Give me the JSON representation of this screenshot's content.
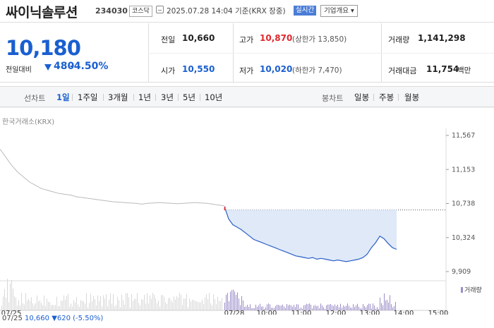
{
  "header": {
    "name": "싸이닉솔루션",
    "code": "234030",
    "market": "코스닥",
    "time": "2025.07.28 14:04 기준(KRX 장중)",
    "live": "실시간",
    "overview": "기업개요 ▾"
  },
  "quote": {
    "price": "10,180",
    "change_label": "전일대비",
    "change": "480",
    "change_pct": "-4.50%",
    "prev_label": "전일",
    "prev": "10,660",
    "high_label": "고가",
    "high": "10,870",
    "upper_limit": "(상한가 13,850)",
    "volume_label": "거래량",
    "volume": "1,141,298",
    "open_label": "시가",
    "open": "10,550",
    "low_label": "저가",
    "low": "10,020",
    "lower_limit": "(하한가 7,470)",
    "amount_label": "거래대금",
    "amount": "11,754",
    "amount_unit": "백만"
  },
  "periods": {
    "line_label": "선차트",
    "items": [
      "1일",
      "1주일",
      "3개월",
      "1년",
      "3년",
      "5년",
      "10년"
    ],
    "active": "1일",
    "candle_label": "봉차트",
    "candles": [
      "일봉",
      "주봉",
      "월봉"
    ]
  },
  "chart_meta": {
    "source": "한국거래소(KRX)",
    "volume_legend": "거래량",
    "footer_date": "07/25",
    "footer_price": "10,660",
    "footer_change": "▼620 (-5.50%)"
  },
  "colors": {
    "up": "#e0282e",
    "down": "#1a5fd0",
    "line_today": "#2a5fc8",
    "line_prev": "#bbbbbb",
    "volume": "#9b8ec8"
  },
  "chart_data": {
    "type": "line",
    "title": "",
    "xlabel": "",
    "ylabel": "",
    "y_ticks": [
      "11,567",
      "11,153",
      "10,738",
      "10,324",
      "9,909"
    ],
    "ylim": [
      9909,
      11567
    ],
    "prev_close": 10660,
    "x_ticks": [
      "07/25",
      "07/28",
      "10:00",
      "11:00",
      "12:00",
      "13:00",
      "14:00",
      "15:00"
    ],
    "series": [
      {
        "values_prev_day": [
          11400,
          11300,
          11200,
          11120,
          11060,
          11000,
          10960,
          10920,
          10900,
          10880,
          10860,
          10850,
          10840,
          10820,
          10810,
          10800,
          10790,
          10780,
          10770,
          10760,
          10755,
          10750,
          10745,
          10740,
          10730,
          10740,
          10745,
          10750,
          10745,
          10740,
          10735,
          10740,
          10745,
          10750,
          10745,
          10740,
          10730,
          10720,
          10710
        ],
        "values_today": [
          10700,
          10550,
          10480,
          10450,
          10420,
          10380,
          10340,
          10300,
          10280,
          10260,
          10240,
          10220,
          10200,
          10180,
          10160,
          10140,
          10120,
          10100,
          10090,
          10080,
          10070,
          10080,
          10060,
          10070,
          10060,
          10050,
          10040,
          10050,
          10040,
          10030,
          10040,
          10050,
          10060,
          10080,
          10120,
          10200,
          10260,
          10340,
          10310,
          10250,
          10200,
          10180
        ]
      }
    ]
  }
}
